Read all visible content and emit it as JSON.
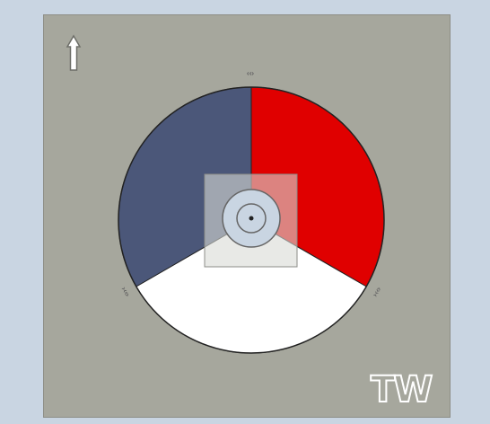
{
  "watermark": "TW",
  "labels": {
    "top": "‹‹›",
    "left": "›‹‹›",
    "right": "›‹‹›"
  },
  "colors": {
    "background": "#c9d5e2",
    "board": "#a6a79d",
    "sector_blue": "#4b5779",
    "sector_red": "#e00000",
    "sector_white": "#ffffff",
    "hub": "#c9d5e2"
  },
  "icons": {
    "north_arrow": "up-arrow-icon"
  }
}
